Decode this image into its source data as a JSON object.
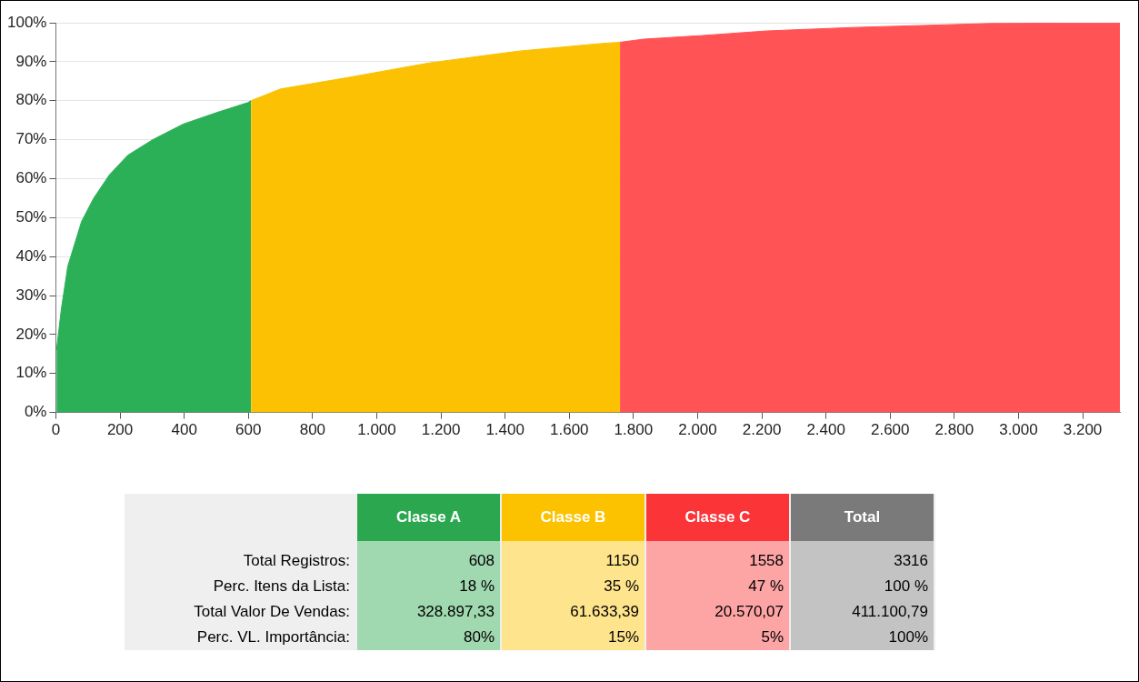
{
  "chart_data": [
    {
      "type": "area",
      "grid": "y",
      "xlim": [
        0,
        3316
      ],
      "ylim": [
        0,
        100
      ],
      "xticks": [
        0,
        200,
        400,
        600,
        800,
        {
          "value": 1000,
          "label": "1.000"
        },
        {
          "value": 1200,
          "label": "1.200"
        },
        {
          "value": 1400,
          "label": "1.400"
        },
        {
          "value": 1600,
          "label": "1.600"
        },
        {
          "value": 1800,
          "label": "1.800"
        },
        {
          "value": 2000,
          "label": "2.000"
        },
        {
          "value": 2200,
          "label": "2.200"
        },
        {
          "value": 2400,
          "label": "2.400"
        },
        {
          "value": 2600,
          "label": "2.600"
        },
        {
          "value": 2800,
          "label": "2.800"
        },
        {
          "value": 3000,
          "label": "3.000"
        },
        {
          "value": 3200,
          "label": "3.200"
        }
      ],
      "yticks": [
        {
          "value": 0,
          "label": "0%"
        },
        {
          "value": 10,
          "label": "10%"
        },
        {
          "value": 20,
          "label": "20%"
        },
        {
          "value": 30,
          "label": "30%"
        },
        {
          "value": 40,
          "label": "40%"
        },
        {
          "value": 50,
          "label": "50%"
        },
        {
          "value": 60,
          "label": "60%"
        },
        {
          "value": 70,
          "label": "70%"
        },
        {
          "value": 80,
          "label": "80%"
        },
        {
          "value": 90,
          "label": "90%"
        },
        {
          "value": 100,
          "label": "100%"
        }
      ],
      "series": [
        {
          "color": "#2bb058",
          "x": [
            2,
            17,
            37,
            52,
            80,
            118,
            167,
            224,
            302,
            397,
            503,
            598,
            608
          ],
          "values": [
            16,
            26.5,
            37.5,
            41.5,
            49,
            55,
            61,
            66,
            70,
            74,
            77,
            79.5,
            80
          ]
        },
        {
          "color": "#fbc102",
          "x": [
            608,
            700,
            914,
            1164,
            1440,
            1690,
            1758
          ],
          "values": [
            80,
            83,
            86,
            89.7,
            92.7,
            94.6,
            95
          ]
        },
        {
          "color": "#ff5356",
          "x": [
            1758,
            1833,
            2011,
            2215,
            2488,
            2911,
            3316
          ],
          "values": [
            95,
            95.8,
            96.7,
            97.9,
            98.8,
            99.8,
            100
          ]
        }
      ]
    },
    {
      "type": "other",
      "categories": [
        "Classe A",
        "Classe B",
        "Classe C",
        "Total"
      ],
      "colors": [
        "#2ba84f",
        "#fcc200",
        "#fb3437",
        "#7a7a7a"
      ],
      "y_categories": [
        "Total Registros:",
        "Perc. Itens da Lista:",
        "Total Valor De Vendas:",
        "Perc. VL. Importância:"
      ],
      "cell_labels": [
        [
          "608",
          "1150",
          "1558",
          "3316"
        ],
        [
          "18 %",
          "35 %",
          "47 %",
          "100 %"
        ],
        [
          "328.897,33",
          "61.633,39",
          "20.570,07",
          "411.100,79"
        ],
        [
          "80%",
          "15%",
          "5%",
          "100%"
        ]
      ]
    }
  ]
}
